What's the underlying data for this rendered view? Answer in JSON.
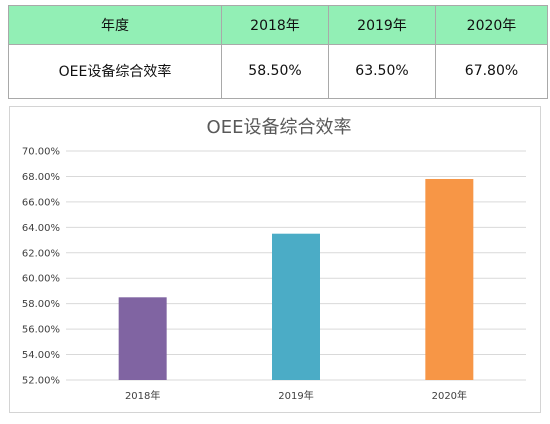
{
  "table": {
    "header": [
      "年度",
      "2018年",
      "2019年",
      "2020年"
    ],
    "row": [
      "OEE设备综合效率",
      "58.50%",
      "63.50%",
      "67.80%"
    ]
  },
  "chart_data": {
    "type": "bar",
    "title": "OEE设备综合效率",
    "categories": [
      "2018年",
      "2019年",
      "2020年"
    ],
    "values": [
      58.5,
      63.5,
      67.8
    ],
    "colors": [
      "#8064a2",
      "#4bacc6",
      "#f79646"
    ],
    "ylim": [
      52,
      70
    ],
    "yticks": [
      "52.00%",
      "54.00%",
      "56.00%",
      "58.00%",
      "60.00%",
      "62.00%",
      "64.00%",
      "66.00%",
      "68.00%",
      "70.00%"
    ],
    "grid": true,
    "legend": "none"
  }
}
